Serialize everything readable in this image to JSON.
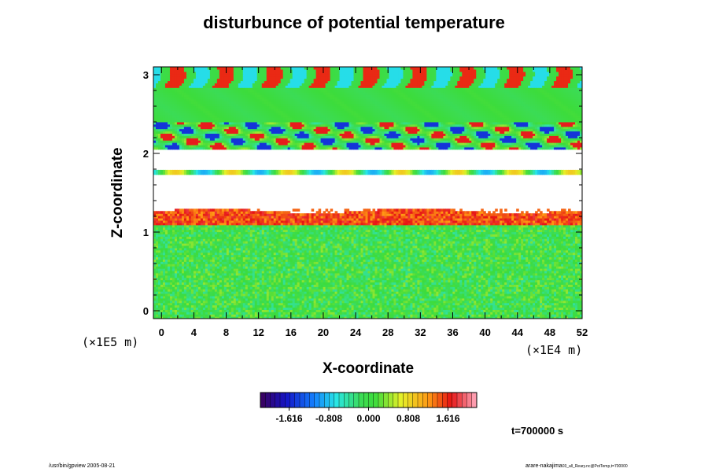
{
  "chart_data": {
    "type": "heatmap",
    "title": "disturbunce of potential temperature",
    "xlabel": "X-coordinate",
    "ylabel": "Z-coordinate",
    "x_unit": "(×1E4 m)",
    "y_unit": "(×1E5 m)",
    "xlim": [
      -1,
      52
    ],
    "ylim": [
      -0.1,
      3.1
    ],
    "x_ticks": [
      0,
      4,
      8,
      12,
      16,
      20,
      24,
      28,
      32,
      36,
      40,
      44,
      48,
      52
    ],
    "y_ticks": [
      0,
      1,
      2,
      3
    ],
    "colorbar": {
      "min": -2.2,
      "max": 2.2,
      "tick_labels": [
        "-1.616",
        "-0.808",
        "0.000",
        "0.808",
        "1.616"
      ],
      "tick_values": [
        -1.616,
        -0.808,
        0.0,
        0.808,
        1.616
      ],
      "colormap": "rainbow (purple-blue-cyan-green-yellow-red-pink)"
    },
    "annotation": "t=700000 s",
    "regions": [
      {
        "z_range": [
          2.85,
          3.05
        ],
        "description": "vertical plumes of positive anomaly alternating with negative",
        "value_range": [
          -0.8,
          1.6
        ]
      },
      {
        "z_range": [
          2.4,
          2.85
        ],
        "value": 0.0
      },
      {
        "z_range": [
          2.05,
          2.3
        ],
        "description": "wavy bands of strong positive and negative anomaly",
        "value_range": [
          -1.6,
          1.6
        ]
      },
      {
        "z_range": [
          1.8,
          2.05
        ],
        "description": "out of range (blank)"
      },
      {
        "z_range": [
          1.75,
          1.8
        ],
        "description": "thin colored line"
      },
      {
        "z_range": [
          1.3,
          1.75
        ],
        "description": "out of range (blank)"
      },
      {
        "z_range": [
          1.1,
          1.3
        ],
        "description": "strong positive anomaly layer",
        "value_range": [
          1.0,
          1.8
        ]
      },
      {
        "z_range": [
          -0.1,
          1.1
        ],
        "description": "noisy near-zero field",
        "value_range": [
          -0.4,
          0.4
        ]
      }
    ]
  },
  "footer": {
    "left": "/usr/bin/gpview 2005-08-21",
    "right_main": "arare-nakajima",
    "right_sub": "03_all_Reary.nc@PotTemp,t=700000"
  },
  "colors": {
    "background": "#ffffff",
    "axes": "#000000"
  }
}
